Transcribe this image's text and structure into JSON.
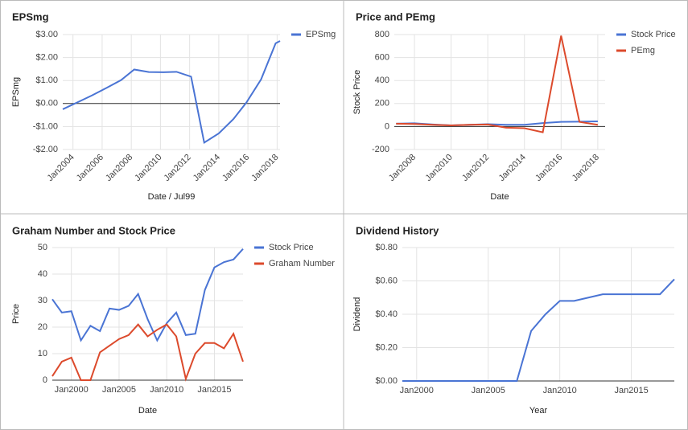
{
  "chart_data": [
    {
      "type": "line",
      "title": "EPSmg",
      "x_label": "Date / Jul99",
      "y_label": "EPSmg",
      "x": [
        2003.3,
        2004.3,
        2005.3,
        2006.3,
        2007.3,
        2008.2,
        2009.2,
        2010.2,
        2011.1,
        2012.1,
        2013.0,
        2014.0,
        2015.0,
        2015.9,
        2016.9,
        2017.9,
        2018.2
      ],
      "series": [
        {
          "name": "EPSmg",
          "color": "#4a74d4",
          "values": [
            -0.25,
            0.05,
            0.35,
            0.68,
            1.02,
            1.48,
            1.37,
            1.36,
            1.38,
            1.17,
            -1.7,
            -1.3,
            -0.68,
            0.05,
            1.05,
            2.62,
            2.72
          ]
        }
      ],
      "xlim": [
        2003.3,
        2018.2
      ],
      "xticks": [
        {
          "value": 2004,
          "label": "Jan2004"
        },
        {
          "value": 2006,
          "label": "Jan2006"
        },
        {
          "value": 2008,
          "label": "Jan2008"
        },
        {
          "value": 2010,
          "label": "Jan2010"
        },
        {
          "value": 2012,
          "label": "Jan2012"
        },
        {
          "value": 2014,
          "label": "Jan2014"
        },
        {
          "value": 2016,
          "label": "Jan2016"
        },
        {
          "value": 2018,
          "label": "Jan2018"
        }
      ],
      "ylim": [
        -2,
        3
      ],
      "yticks": [
        {
          "value": 3,
          "label": "$3.00"
        },
        {
          "value": 2,
          "label": "$2.00"
        },
        {
          "value": 1,
          "label": "$1.00"
        },
        {
          "value": 0,
          "label": "$0.00"
        },
        {
          "value": -1,
          "label": "-$1.00"
        },
        {
          "value": -2,
          "label": "-$2.00"
        }
      ],
      "grid": true,
      "legend": "right"
    },
    {
      "type": "line",
      "title": "Price and PEmg",
      "x_label": "Date",
      "y_label": "Stock Price",
      "x": [
        2007,
        2008,
        2009,
        2010,
        2011,
        2012,
        2013,
        2014,
        2015,
        2016,
        2017,
        2018
      ],
      "series": [
        {
          "name": "Stock Price",
          "color": "#4a74d4",
          "values": [
            25,
            28,
            18,
            10,
            15,
            20,
            15,
            15,
            30,
            40,
            42,
            45
          ]
        },
        {
          "name": "PEmg",
          "color": "#dc4a2c",
          "values": [
            25,
            22,
            15,
            10,
            15,
            18,
            -10,
            -15,
            -50,
            790,
            40,
            15
          ]
        }
      ],
      "xlim": [
        2006.9,
        2018.4
      ],
      "xticks": [
        {
          "value": 2008,
          "label": "Jan2008"
        },
        {
          "value": 2010,
          "label": "Jan2010"
        },
        {
          "value": 2012,
          "label": "Jan2012"
        },
        {
          "value": 2014,
          "label": "Jan2014"
        },
        {
          "value": 2016,
          "label": "Jan2016"
        },
        {
          "value": 2018,
          "label": "Jan2018"
        }
      ],
      "ylim": [
        -200,
        800
      ],
      "yticks": [
        800,
        600,
        400,
        200,
        0,
        -200
      ],
      "grid": true,
      "legend": "right"
    },
    {
      "type": "line",
      "title": "Graham Number and Stock Price",
      "x_label": "Date",
      "y_label": "Price",
      "x": [
        1998,
        1999,
        2000,
        2001,
        2002,
        2003,
        2004,
        2005,
        2006,
        2007,
        2008,
        2009,
        2010,
        2011,
        2012,
        2013,
        2014,
        2015,
        2016,
        2017,
        2018
      ],
      "series": [
        {
          "name": "Stock Price",
          "color": "#4a74d4",
          "values": [
            30.5,
            25.5,
            26,
            15,
            20.5,
            18.5,
            27,
            26.5,
            28,
            32.5,
            23,
            15,
            21.5,
            25.5,
            17,
            17.5,
            34,
            42.5,
            44.5,
            45.5,
            49.5
          ]
        },
        {
          "name": "Graham Number",
          "color": "#dc4a2c",
          "values": [
            1.5,
            7,
            8.5,
            0,
            0,
            10.5,
            13,
            15.5,
            17,
            21,
            16.5,
            19,
            21,
            16.5,
            0.5,
            10,
            14,
            14,
            12,
            17.5,
            7
          ]
        }
      ],
      "xlim": [
        1998,
        2018
      ],
      "xticks": [
        {
          "value": 2000,
          "label": "Jan2000"
        },
        {
          "value": 2005,
          "label": "Jan2005"
        },
        {
          "value": 2010,
          "label": "Jan2010"
        },
        {
          "value": 2015,
          "label": "Jan2015"
        }
      ],
      "ylim": [
        0,
        50
      ],
      "yticks": [
        50,
        40,
        30,
        20,
        10,
        0
      ],
      "grid": true,
      "legend": "right"
    },
    {
      "type": "line",
      "title": "Dividend History",
      "x_label": "Year",
      "y_label": "Dividend",
      "x": [
        1999,
        2000,
        2001,
        2002,
        2003,
        2004,
        2005,
        2006,
        2007,
        2008,
        2009,
        2010,
        2011,
        2012,
        2013,
        2014,
        2015,
        2016,
        2017,
        2018
      ],
      "series": [
        {
          "color": "#4a74d4",
          "values": [
            0,
            0,
            0,
            0,
            0,
            0,
            0,
            0,
            0,
            0.3,
            0.4,
            0.48,
            0.48,
            0.5,
            0.52,
            0.52,
            0.52,
            0.52,
            0.52,
            0.61
          ]
        }
      ],
      "xlim": [
        1999,
        2018
      ],
      "xticks": [
        {
          "value": 2000,
          "label": "Jan2000"
        },
        {
          "value": 2005,
          "label": "Jan2005"
        },
        {
          "value": 2010,
          "label": "Jan2010"
        },
        {
          "value": 2015,
          "label": "Jan2015"
        }
      ],
      "ylim": [
        0,
        0.8
      ],
      "yticks": [
        {
          "value": 0.8,
          "label": "$0.80"
        },
        {
          "value": 0.6,
          "label": "$0.60"
        },
        {
          "value": 0.4,
          "label": "$0.40"
        },
        {
          "value": 0.2,
          "label": "$0.20"
        },
        {
          "value": 0,
          "label": "$0.00"
        }
      ],
      "grid": true
    }
  ]
}
